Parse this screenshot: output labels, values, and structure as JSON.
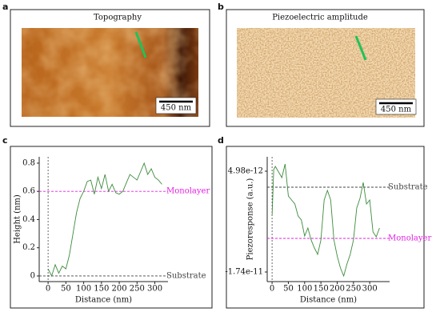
{
  "panels": [
    {
      "label": "a",
      "title": "Topography",
      "scale_bar": "450 nm"
    },
    {
      "label": "b",
      "title": "Piezoelectric amplitude",
      "scale_bar": "450 nm"
    },
    {
      "label": "c"
    },
    {
      "label": "d"
    }
  ],
  "chart_data": [
    {
      "type": "line",
      "xlabel": "Distance (nm)",
      "ylabel": "Height (nm)",
      "x": [
        0,
        10,
        20,
        30,
        40,
        50,
        60,
        70,
        80,
        90,
        100,
        110,
        120,
        130,
        140,
        150,
        160,
        170,
        180,
        190,
        200,
        210,
        220,
        230,
        240,
        250,
        260,
        270,
        280,
        290,
        300,
        310,
        320
      ],
      "series": [
        {
          "color": "#3d8b3d",
          "values": [
            0.05,
            0,
            0.08,
            0.02,
            0.07,
            0.05,
            0.15,
            0.3,
            0.45,
            0.55,
            0.6,
            0.67,
            0.68,
            0.58,
            0.7,
            0.62,
            0.72,
            0.6,
            0.65,
            0.59,
            0.58,
            0.6,
            0.66,
            0.72,
            0.7,
            0.68,
            0.74,
            0.8,
            0.72,
            0.76,
            0.7,
            0.68,
            0.65
          ]
        }
      ],
      "xlim": [
        -25,
        337
      ],
      "ylim": [
        -0.04,
        0.845
      ],
      "xticks": [
        0,
        50,
        100,
        150,
        200,
        250,
        300
      ],
      "yticks": [
        0,
        0.2,
        0.4,
        0.6,
        0.8
      ],
      "reference_lines": [
        {
          "label": "Monolayer",
          "value": 0.6,
          "color": "#e020e0"
        },
        {
          "label": "Substrate",
          "value": 0,
          "color": "#444444"
        }
      ]
    },
    {
      "type": "line",
      "xlabel": "Distance (nm)",
      "ylabel": "Piezoresponse (a.u.)",
      "x": [
        0,
        5,
        10,
        20,
        30,
        40,
        50,
        60,
        70,
        80,
        90,
        100,
        110,
        120,
        130,
        140,
        150,
        160,
        170,
        180,
        190,
        200,
        210,
        220,
        230,
        240,
        250,
        260,
        270,
        280,
        290,
        300,
        310,
        320,
        330
      ],
      "series": [
        {
          "color": "#3d8b3d",
          "values": [
            -4.97e-12,
            5.34e-12,
            6.05e-12,
            4.8e-12,
            3.56e-12,
            6.58e-12,
            -5.3e-13,
            -1.41e-12,
            -2.3e-12,
            -4.97e-12,
            -5.85e-12,
            -9.41e-12,
            -7.63e-12,
            -1.029e-11,
            -1.207e-11,
            -1.349e-11,
            -1.029e-11,
            -1.41e-12,
            7.2e-13,
            -1.41e-12,
            -1.029e-11,
            -1.385e-11,
            -1.651e-11,
            -1.829e-11,
            -1.562e-11,
            -1.349e-11,
            -1.029e-11,
            -3.19e-12,
            -1.06e-12,
            2.49e-12,
            -2.3e-12,
            -1.41e-12,
            -8.52e-12,
            -9.58e-12,
            -7.63e-12
          ]
        }
      ],
      "xlim": [
        -15,
        361
      ],
      "ylim": [
        -1.953e-11,
        8.18e-12
      ],
      "xticks": [
        0,
        50,
        100,
        150,
        200,
        250,
        300
      ],
      "yticks": [
        -1.74e-11,
        4.98e-12
      ],
      "reference_lines": [
        {
          "label": "Substrate",
          "value": 1.43e-12,
          "color": "#444444"
        },
        {
          "label": "Monolayer",
          "value": -9.94e-12,
          "color": "#e020e0"
        }
      ]
    }
  ]
}
